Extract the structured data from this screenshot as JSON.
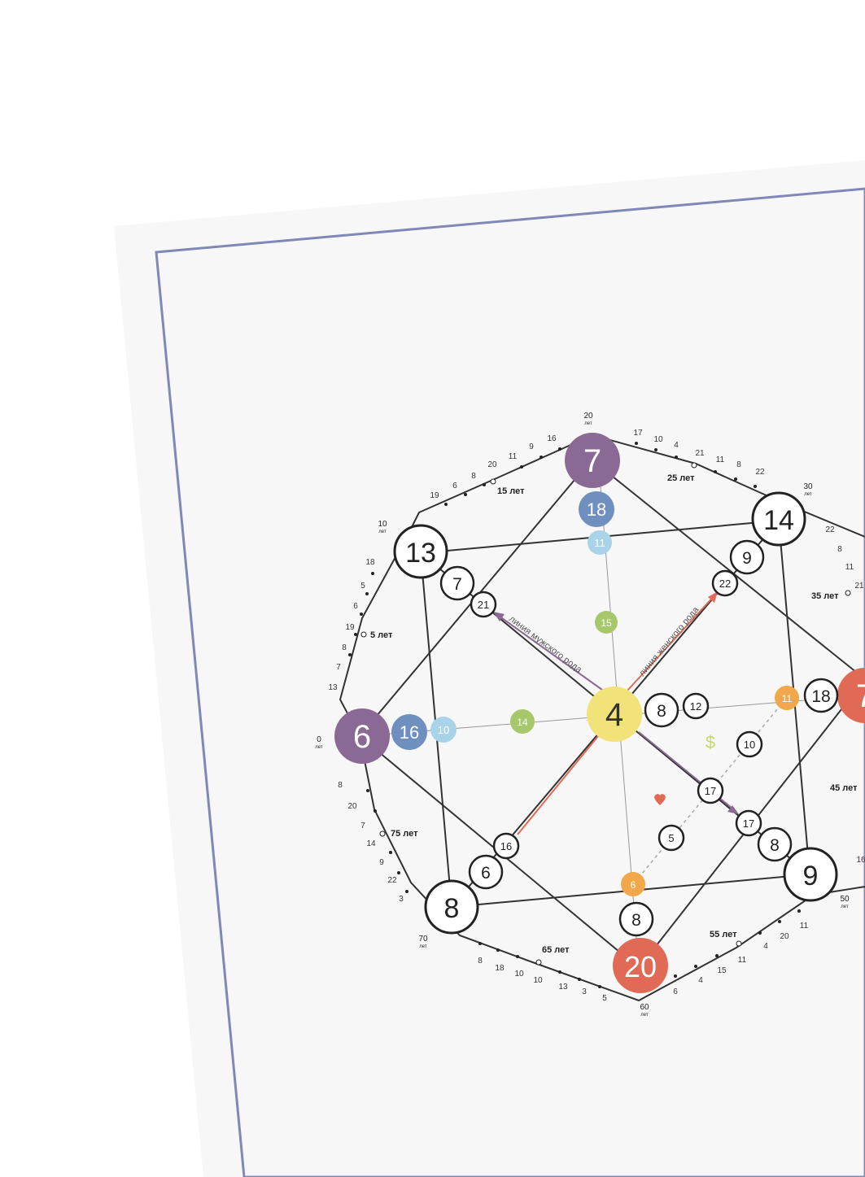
{
  "diagram": {
    "center": {
      "value": "4",
      "color": "#f2e27a"
    },
    "top": {
      "value": "7",
      "color": "#8a6a95"
    },
    "left": {
      "value": "6",
      "color": "#8a6a95"
    },
    "right": {
      "value": "7",
      "color": "#e06a55"
    },
    "bottom": {
      "value": "20",
      "color": "#e06a55"
    },
    "corner_tl": "13",
    "corner_tr": "14",
    "corner_bl": "8",
    "corner_br": "9",
    "chakra_top": [
      {
        "value": "18",
        "color": "#6f8fbf"
      },
      {
        "value": "11",
        "color": "#a9d3e8"
      },
      {
        "value": "15",
        "color": "#a6c86a"
      }
    ],
    "chakra_left": [
      {
        "value": "16",
        "color": "#6f8fbf"
      },
      {
        "value": "10",
        "color": "#a9d3e8"
      },
      {
        "value": "14",
        "color": "#a6c86a"
      }
    ],
    "right_inner": [
      {
        "value": "11",
        "color": "#f0a84a"
      },
      {
        "value": "18",
        "color": "#ffffff"
      }
    ],
    "bottom_inner": [
      {
        "value": "6",
        "color": "#f0a84a"
      },
      {
        "value": "8",
        "color": "#ffffff"
      }
    ],
    "tl_inner": [
      "7",
      "21"
    ],
    "tr_inner": [
      "9",
      "22"
    ],
    "bl_inner": [
      "6",
      "16"
    ],
    "br_inner": [
      "8",
      "17"
    ],
    "center_right": [
      "8",
      "12"
    ],
    "money_line": [
      "10",
      "17"
    ],
    "love_line": "5",
    "money_icon": "dollar-icon",
    "love_icon": "heart-icon",
    "line_male": "линия мужского рода",
    "line_female": "линия женского рода",
    "colors": {
      "frame": "#8088b8",
      "line": "#333333",
      "male_arrow": "#8a6a95",
      "female_arrow": "#e06a55",
      "money": "#c8d870",
      "heart": "#e06a55"
    }
  },
  "age_labels": {
    "a0": "0",
    "a10": "10",
    "a20": "20",
    "a30": "30",
    "a50": "50",
    "a60": "60",
    "a70": "70",
    "unit": "лет",
    "y5": "5 лет",
    "y15": "15 лет",
    "y25": "25 лет",
    "y35": "35 лет",
    "y45": "45 лет",
    "y55": "55 лет",
    "y65": "65 лет",
    "y75": "75 лет"
  },
  "perimeter_numbers": {
    "left_upper": [
      "18",
      "5",
      "6",
      "19",
      "8",
      "7",
      "13"
    ],
    "top_left": [
      "19",
      "6",
      "8",
      "20",
      "11",
      "9",
      "16"
    ],
    "top_right": [
      "17",
      "10",
      "4",
      "21",
      "11",
      "8",
      "22"
    ],
    "right_upper": [
      "22",
      "8",
      "11",
      "21"
    ],
    "left_lower": [
      "8",
      "20",
      "7",
      "14",
      "9",
      "22",
      "3"
    ],
    "bottom_left": [
      "8",
      "18",
      "10",
      "10",
      "13",
      "3",
      "5"
    ],
    "bottom_right": [
      "6",
      "4",
      "15",
      "11",
      "4",
      "20",
      "11"
    ],
    "right_lower": [
      "16"
    ]
  }
}
